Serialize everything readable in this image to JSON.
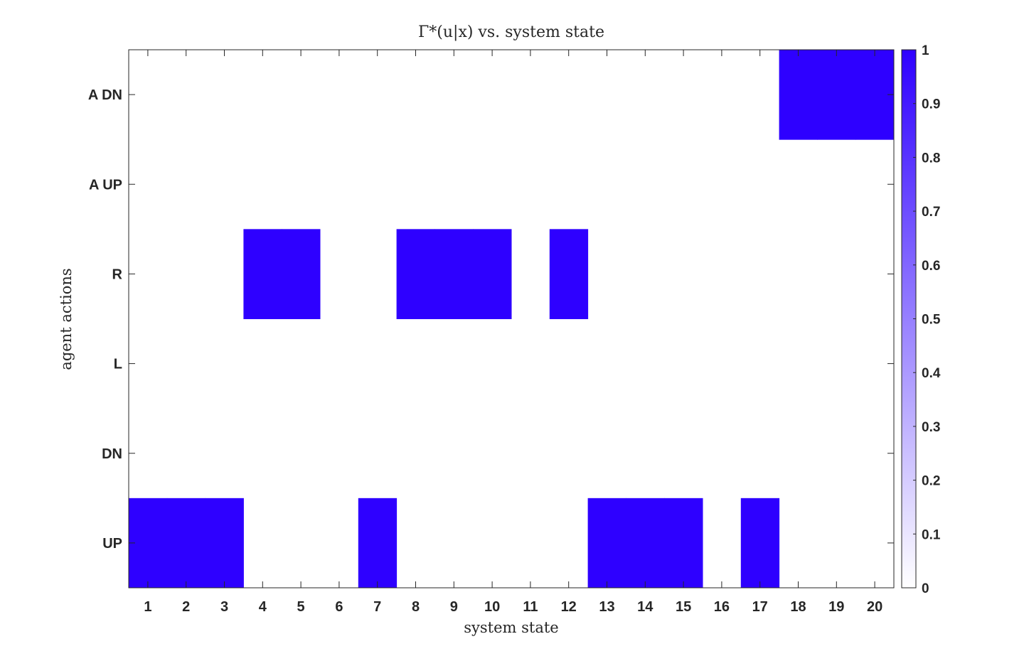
{
  "chart_data": {
    "type": "heatmap",
    "title": "Γ*(u|x) vs. system state",
    "xlabel": "system state",
    "ylabel": "agent actions",
    "x": [
      1,
      2,
      3,
      4,
      5,
      6,
      7,
      8,
      9,
      10,
      11,
      12,
      13,
      14,
      15,
      16,
      17,
      18,
      19,
      20
    ],
    "y_labels": [
      "UP",
      "DN",
      "L",
      "R",
      "A UP",
      "A DN"
    ],
    "values": [
      [
        1,
        1,
        1,
        0,
        0,
        0,
        1,
        0,
        0,
        0,
        0,
        0,
        1,
        1,
        1,
        0,
        1,
        0,
        0,
        0
      ],
      [
        0,
        0,
        0,
        0,
        0,
        0,
        0,
        0,
        0,
        0,
        0,
        0,
        0,
        0,
        0,
        0,
        0,
        0,
        0,
        0
      ],
      [
        0,
        0,
        0,
        0,
        0,
        0,
        0,
        0,
        0,
        0,
        0,
        0,
        0,
        0,
        0,
        0,
        0,
        0,
        0,
        0
      ],
      [
        0,
        0,
        0,
        1,
        1,
        0,
        0,
        1,
        1,
        1,
        0,
        1,
        0,
        0,
        0,
        0,
        0,
        0,
        0,
        0
      ],
      [
        0,
        0,
        0,
        0,
        0,
        0,
        0,
        0,
        0,
        0,
        0,
        0,
        0,
        0,
        0,
        0,
        0,
        0,
        0,
        0
      ],
      [
        0,
        0,
        0,
        0,
        0,
        0,
        0,
        0,
        0,
        0,
        0,
        0,
        0,
        0,
        0,
        0,
        0,
        1,
        1,
        1
      ]
    ],
    "zlim": [
      0,
      1
    ],
    "colorbar_ticks": [
      "0",
      "0.1",
      "0.2",
      "0.3",
      "0.4",
      "0.5",
      "0.6",
      "0.7",
      "0.8",
      "0.9",
      "1"
    ],
    "colormap": {
      "low": "#ffffff",
      "high": "#2e00ff"
    },
    "axis_color": "#262626",
    "grid": false
  }
}
